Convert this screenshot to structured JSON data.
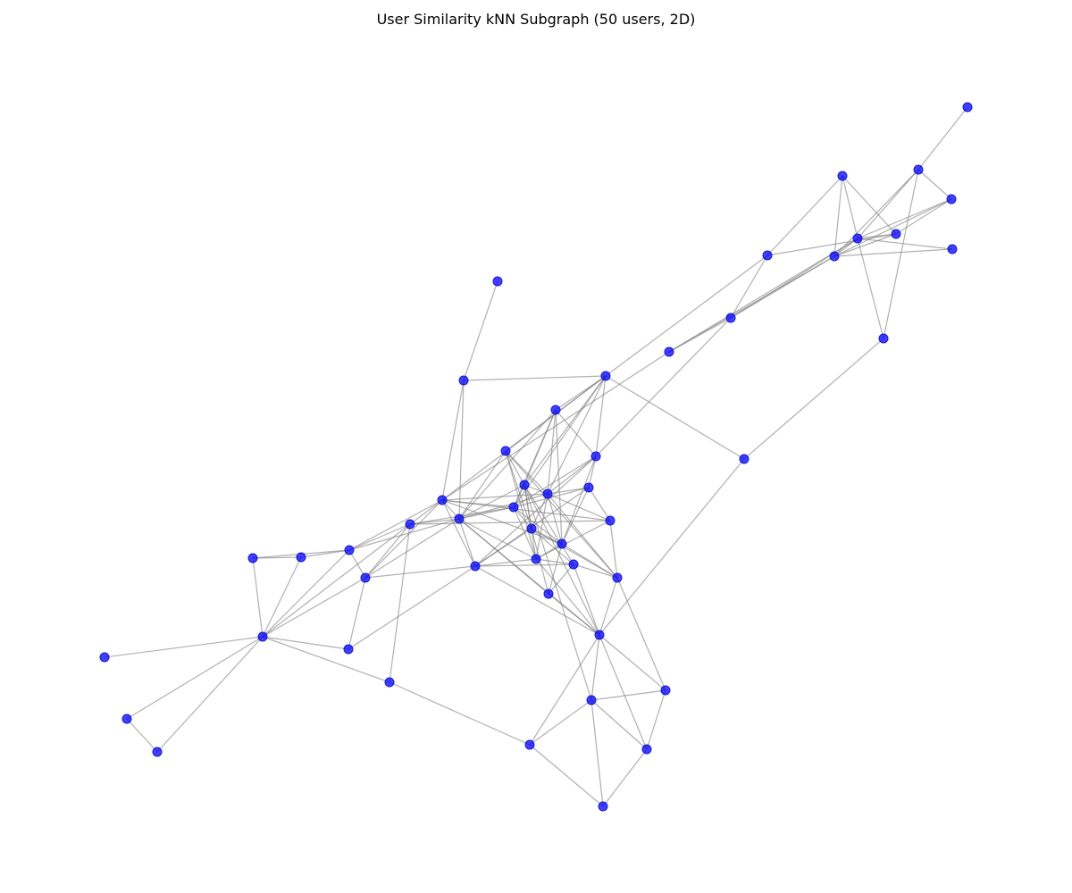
{
  "figure": {
    "title": "User Similarity kNN Subgraph (50 users, 2D)"
  },
  "colors": {
    "node_fill": "#0000ff",
    "edge": "#808080",
    "background": "#ffffff"
  }
}
